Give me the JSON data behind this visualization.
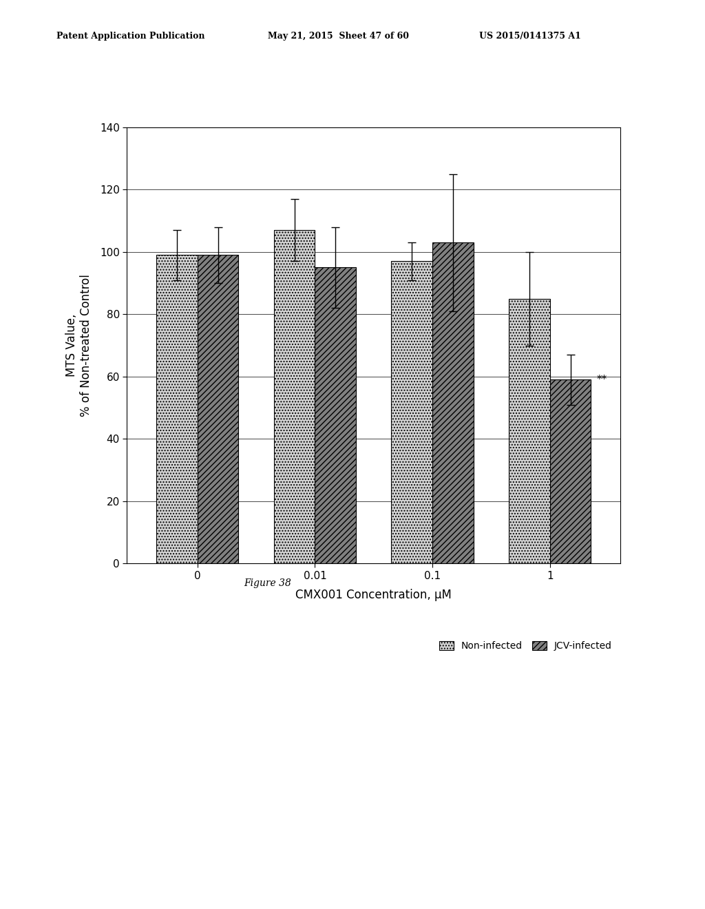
{
  "categories": [
    "0",
    "0.01",
    "0.1",
    "1"
  ],
  "non_infected_values": [
    99,
    107,
    97,
    85
  ],
  "jcv_infected_values": [
    99,
    95,
    103,
    59
  ],
  "non_infected_errors": [
    8,
    10,
    6,
    15
  ],
  "jcv_infected_errors": [
    9,
    13,
    22,
    8
  ],
  "xlabel": "CMX001 Concentration, μM",
  "ylabel": "MTS Value,\n% of Non-treated Control",
  "ylim": [
    0,
    140
  ],
  "yticks": [
    0,
    20,
    40,
    60,
    80,
    100,
    120,
    140
  ],
  "legend_labels": [
    "Non-infected",
    "JCV-infected"
  ],
  "figure_caption": "Figure 38",
  "header_left": "Patent Application Publication",
  "header_mid": "May 21, 2015  Sheet 47 of 60",
  "header_right": "US 2015/0141375 A1",
  "bar_width": 0.35,
  "non_infected_color": "#d3d3d3",
  "jcv_infected_color": "#808080",
  "annotation": "**",
  "background_color": "#ffffff"
}
